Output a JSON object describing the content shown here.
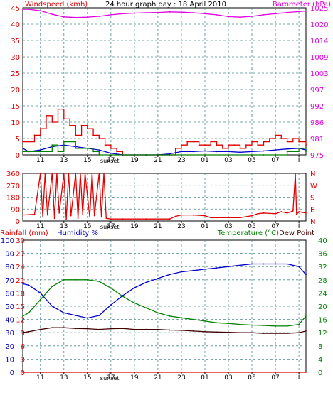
{
  "title": "24 hour graph day : 18 April 2010",
  "sunset_label": "sunset",
  "colors": {
    "red": "#e00000",
    "magenta": "#e000e0",
    "blue": "#0000cc",
    "green": "#008000",
    "brown": "#400000",
    "grid": "#4a8a8a",
    "frame": "#000000"
  },
  "time_ticks": [
    "11",
    "13",
    "15",
    "17",
    "19",
    "21",
    "23",
    "01",
    "03",
    "05",
    "07",
    "I"
  ],
  "chart_data": [
    {
      "type": "line",
      "title": "24 hour graph day : 18 April 2010",
      "left_axis_label": "Windspeed (kmh)",
      "right_axis_label": "Barometer (hPa)",
      "left_ticks": [
        "45",
        "40",
        "35",
        "30",
        "25",
        "20",
        "15",
        "10",
        "5",
        "0"
      ],
      "right_ticks": [
        "1025",
        "1020",
        "1014",
        "1009",
        "1003",
        "997",
        "992",
        "986",
        "981",
        "975"
      ],
      "ylim_left": [
        0,
        45
      ],
      "ylim_right": [
        975,
        1025
      ],
      "grid": true,
      "series": [
        {
          "axis": "right",
          "color": "magenta",
          "x": [
            9.5,
            10,
            11,
            12,
            13,
            14,
            15,
            16,
            17,
            18,
            19,
            20,
            21,
            22,
            23,
            24,
            25,
            26,
            27,
            28,
            29,
            30,
            31,
            32,
            33.6
          ],
          "y": [
            1024.5,
            1024.5,
            1024.0,
            1022.8,
            1021.9,
            1021.7,
            1021.8,
            1022.1,
            1022.6,
            1023.0,
            1023.2,
            1023.3,
            1023.4,
            1023.6,
            1023.5,
            1023.3,
            1023.0,
            1022.6,
            1022.0,
            1021.8,
            1022.1,
            1022.6,
            1023.0,
            1023.4,
            1023.9
          ]
        },
        {
          "axis": "left",
          "color": "red",
          "style": "step",
          "x": [
            9.5,
            10,
            10.5,
            11,
            11.5,
            12,
            12.5,
            13,
            13.5,
            14,
            14.5,
            15,
            15.5,
            16,
            16.5,
            17,
            17.5,
            18,
            19,
            20,
            21,
            22,
            22.5,
            23,
            23.5,
            24,
            24.5,
            25,
            25.5,
            26,
            26.5,
            27,
            27.5,
            28,
            28.5,
            29,
            29.5,
            30,
            30.5,
            31,
            31.5,
            32,
            32.5,
            33,
            33.6
          ],
          "y": [
            4,
            4,
            6,
            8,
            12,
            10,
            14,
            11,
            9,
            6,
            9,
            8,
            6,
            5,
            3,
            2,
            1,
            0,
            0,
            0,
            0,
            0,
            2,
            3,
            4,
            4,
            3,
            3,
            4,
            3,
            2,
            3,
            3,
            2,
            3,
            4,
            3,
            4,
            5,
            6,
            5,
            4,
            5,
            4,
            3
          ]
        },
        {
          "axis": "left",
          "color": "blue",
          "x": [
            9.5,
            10,
            11,
            12,
            13,
            14,
            15,
            16,
            17,
            18,
            19,
            20,
            21,
            22,
            23,
            24,
            25,
            26,
            27,
            28,
            29,
            30,
            31,
            32,
            33,
            33.6
          ],
          "y": [
            2,
            1,
            1.5,
            2.5,
            3,
            2.5,
            2,
            1.5,
            0.5,
            0,
            0,
            0,
            0,
            0.3,
            1,
            1,
            1.2,
            1,
            1,
            0.8,
            1,
            1.2,
            1.5,
            1.8,
            2,
            1.5
          ]
        },
        {
          "axis": "left",
          "color": "green",
          "style": "step",
          "x": [
            9.5,
            11,
            12,
            12.5,
            13,
            14,
            15,
            15.5,
            16,
            20,
            30,
            31,
            32,
            33,
            33.6
          ],
          "y": [
            1,
            1,
            3,
            1,
            4,
            2,
            2,
            1,
            0,
            0,
            0,
            0,
            1,
            2,
            1
          ]
        }
      ]
    },
    {
      "type": "line",
      "left_ticks": [
        "360",
        "270",
        "180",
        "90",
        "0"
      ],
      "right_ticks": [
        "N",
        "W",
        "S",
        "E",
        "N"
      ],
      "ylim": [
        0,
        360
      ],
      "grid": true,
      "series": [
        {
          "axis": "left",
          "color": "red",
          "x": [
            9.5,
            10.5,
            11,
            11.2,
            11.4,
            11.6,
            12,
            12.2,
            12.4,
            12.6,
            13,
            13.2,
            13.4,
            13.6,
            14,
            14.2,
            14.4,
            14.6,
            14.8,
            15.2,
            15.4,
            15.6,
            16,
            16.2,
            16.4,
            16.6,
            17,
            18,
            20,
            22,
            22.5,
            23,
            24,
            25,
            25.5,
            26,
            28,
            29,
            29.5,
            30,
            31,
            31.5,
            32,
            32.5,
            32.7,
            32.8,
            33,
            33.6
          ],
          "y": [
            45,
            50,
            360,
            30,
            360,
            45,
            360,
            20,
            360,
            60,
            360,
            10,
            360,
            40,
            360,
            20,
            360,
            50,
            360,
            30,
            360,
            40,
            360,
            30,
            360,
            20,
            15,
            15,
            15,
            15,
            35,
            45,
            45,
            40,
            25,
            25,
            25,
            40,
            55,
            60,
            55,
            70,
            60,
            75,
            360,
            50,
            70,
            60
          ]
        }
      ]
    },
    {
      "type": "line",
      "left_axis_label": "Rainfall (mm)",
      "left_axis_label2": "Humidity %",
      "right_axis_label": "Temperature (°C)",
      "right_axis_label2": "Dew Point",
      "rain_ticks": [
        "30",
        "27",
        "24",
        "21",
        "18",
        "15",
        "12",
        "9",
        "6",
        "3",
        "0"
      ],
      "humidity_ticks": [
        "100",
        "90",
        "80",
        "70",
        "60",
        "50",
        "40",
        "30",
        "20",
        "10",
        "0"
      ],
      "temp_ticks": [
        "40",
        "36",
        "32",
        "28",
        "24",
        "20",
        "16",
        "12",
        "8",
        "4",
        "0"
      ],
      "ylim_humidity": [
        0,
        100
      ],
      "ylim_temp": [
        0,
        40
      ],
      "grid": true,
      "series": [
        {
          "axis": "humidity",
          "color": "blue",
          "x": [
            9.5,
            10,
            11,
            12,
            13,
            14,
            15,
            16,
            17,
            18,
            19,
            20,
            21,
            22,
            23,
            24,
            25,
            26,
            27,
            28,
            29,
            30,
            31,
            32,
            33,
            33.6
          ],
          "y": [
            67,
            66,
            60,
            50,
            45,
            43,
            41,
            43,
            51,
            58,
            64,
            68,
            71,
            74,
            76,
            77,
            78,
            79,
            80,
            81,
            82,
            82,
            82,
            82,
            80,
            74
          ]
        },
        {
          "axis": "temp",
          "color": "green",
          "x": [
            9.5,
            10,
            11,
            12,
            13,
            14,
            15,
            16,
            17,
            18,
            19,
            20,
            21,
            22,
            23,
            24,
            25,
            26,
            27,
            28,
            29,
            30,
            31,
            32,
            33,
            33.6
          ],
          "y": [
            17,
            18,
            22,
            26,
            28,
            28,
            28,
            27.5,
            25.5,
            23,
            21,
            19.5,
            18,
            17,
            16.5,
            16,
            15.5,
            15,
            14.8,
            14.5,
            14.3,
            14.2,
            14,
            14,
            14.5,
            17
          ]
        },
        {
          "axis": "temp",
          "color": "brown",
          "x": [
            9.5,
            10,
            11,
            12,
            13,
            14,
            15,
            16,
            17,
            18,
            19,
            20,
            21,
            22,
            23,
            24,
            25,
            26,
            27,
            28,
            29,
            30,
            31,
            32,
            33,
            33.6
          ],
          "y": [
            12,
            12.3,
            13,
            13.5,
            13.5,
            13.3,
            13.2,
            13,
            13.2,
            13.3,
            13,
            13,
            13,
            12.8,
            12.7,
            12.5,
            12.3,
            12.2,
            12.1,
            12,
            12,
            11.8,
            11.8,
            11.8,
            12,
            12.5
          ]
        },
        {
          "axis": "rain",
          "color": "red",
          "x": [
            9.5,
            33.6
          ],
          "y": [
            0,
            0
          ]
        }
      ]
    }
  ]
}
